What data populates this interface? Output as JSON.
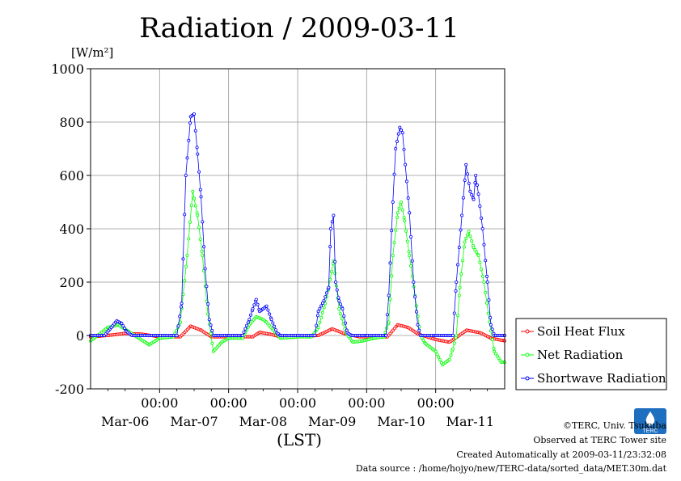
{
  "chart_data": {
    "type": "line",
    "title": "Radiation / 2009-03-11",
    "ylabel": "[W/m²]",
    "xlabel": "(LST)",
    "ylim": [
      -200,
      1000
    ],
    "yticks": [
      -200,
      0,
      200,
      400,
      600,
      800,
      1000
    ],
    "x_range_days": [
      0,
      6
    ],
    "x_midnight_label": "00:00",
    "x_date_labels": [
      "Mar-06",
      "Mar-07",
      "Mar-08",
      "Mar-09",
      "Mar-10",
      "Mar-11"
    ],
    "grid": true,
    "legend_position": "bottom-right outside plot",
    "series": [
      {
        "name": "Soil Heat Flux",
        "color": "#ff0000",
        "points": [
          [
            0.0,
            -5
          ],
          [
            0.25,
            0
          ],
          [
            0.5,
            8
          ],
          [
            0.75,
            5
          ],
          [
            1.0,
            -5
          ],
          [
            1.3,
            -5
          ],
          [
            1.45,
            35
          ],
          [
            1.6,
            20
          ],
          [
            1.75,
            -5
          ],
          [
            2.0,
            -5
          ],
          [
            2.35,
            -5
          ],
          [
            2.45,
            12
          ],
          [
            2.6,
            5
          ],
          [
            2.75,
            -5
          ],
          [
            3.0,
            -5
          ],
          [
            3.3,
            0
          ],
          [
            3.5,
            25
          ],
          [
            3.7,
            5
          ],
          [
            3.9,
            -5
          ],
          [
            4.3,
            -5
          ],
          [
            4.45,
            40
          ],
          [
            4.6,
            30
          ],
          [
            4.75,
            5
          ],
          [
            5.0,
            -15
          ],
          [
            5.2,
            -25
          ],
          [
            5.45,
            20
          ],
          [
            5.65,
            10
          ],
          [
            5.8,
            -10
          ],
          [
            6.0,
            -20
          ]
        ]
      },
      {
        "name": "Net Radiation",
        "color": "#00ff00",
        "points": [
          [
            0.0,
            -20
          ],
          [
            0.1,
            0
          ],
          [
            0.25,
            30
          ],
          [
            0.4,
            40
          ],
          [
            0.55,
            15
          ],
          [
            0.7,
            -10
          ],
          [
            0.85,
            -35
          ],
          [
            1.0,
            -10
          ],
          [
            1.2,
            -5
          ],
          [
            1.3,
            50
          ],
          [
            1.4,
            300
          ],
          [
            1.48,
            540
          ],
          [
            1.55,
            450
          ],
          [
            1.62,
            300
          ],
          [
            1.7,
            80
          ],
          [
            1.78,
            -60
          ],
          [
            1.9,
            -25
          ],
          [
            2.0,
            -10
          ],
          [
            2.2,
            -10
          ],
          [
            2.3,
            40
          ],
          [
            2.4,
            70
          ],
          [
            2.5,
            60
          ],
          [
            2.55,
            50
          ],
          [
            2.65,
            20
          ],
          [
            2.75,
            -10
          ],
          [
            3.0,
            -5
          ],
          [
            3.2,
            -5
          ],
          [
            3.3,
            30
          ],
          [
            3.4,
            120
          ],
          [
            3.45,
            180
          ],
          [
            3.52,
            280
          ],
          [
            3.6,
            100
          ],
          [
            3.7,
            10
          ],
          [
            3.8,
            -25
          ],
          [
            3.95,
            -20
          ],
          [
            4.1,
            -10
          ],
          [
            4.25,
            -5
          ],
          [
            4.32,
            50
          ],
          [
            4.38,
            300
          ],
          [
            4.45,
            460
          ],
          [
            4.5,
            500
          ],
          [
            4.55,
            430
          ],
          [
            4.62,
            300
          ],
          [
            4.7,
            150
          ],
          [
            4.78,
            0
          ],
          [
            4.85,
            -30
          ],
          [
            5.0,
            -60
          ],
          [
            5.1,
            -110
          ],
          [
            5.2,
            -90
          ],
          [
            5.25,
            -50
          ],
          [
            5.3,
            0
          ],
          [
            5.35,
            180
          ],
          [
            5.42,
            350
          ],
          [
            5.48,
            390
          ],
          [
            5.55,
            330
          ],
          [
            5.62,
            300
          ],
          [
            5.7,
            200
          ],
          [
            5.78,
            50
          ],
          [
            5.85,
            -60
          ],
          [
            5.95,
            -100
          ],
          [
            6.0,
            -100
          ]
        ]
      },
      {
        "name": "Shortwave Radiation",
        "color": "#0000ff",
        "points": [
          [
            0.0,
            0
          ],
          [
            0.2,
            0
          ],
          [
            0.3,
            30
          ],
          [
            0.38,
            55
          ],
          [
            0.45,
            45
          ],
          [
            0.52,
            15
          ],
          [
            0.6,
            0
          ],
          [
            1.0,
            0
          ],
          [
            1.25,
            0
          ],
          [
            1.32,
            120
          ],
          [
            1.38,
            600
          ],
          [
            1.45,
            820
          ],
          [
            1.5,
            830
          ],
          [
            1.55,
            680
          ],
          [
            1.6,
            520
          ],
          [
            1.66,
            250
          ],
          [
            1.72,
            60
          ],
          [
            1.78,
            0
          ],
          [
            2.0,
            0
          ],
          [
            2.2,
            0
          ],
          [
            2.3,
            60
          ],
          [
            2.35,
            100
          ],
          [
            2.4,
            135
          ],
          [
            2.45,
            90
          ],
          [
            2.5,
            100
          ],
          [
            2.55,
            110
          ],
          [
            2.62,
            60
          ],
          [
            2.7,
            10
          ],
          [
            2.75,
            0
          ],
          [
            3.0,
            0
          ],
          [
            3.25,
            0
          ],
          [
            3.3,
            90
          ],
          [
            3.38,
            130
          ],
          [
            3.45,
            180
          ],
          [
            3.48,
            400
          ],
          [
            3.52,
            450
          ],
          [
            3.55,
            200
          ],
          [
            3.6,
            130
          ],
          [
            3.65,
            100
          ],
          [
            3.72,
            10
          ],
          [
            3.78,
            0
          ],
          [
            4.0,
            0
          ],
          [
            4.28,
            0
          ],
          [
            4.32,
            150
          ],
          [
            4.38,
            500
          ],
          [
            4.42,
            700
          ],
          [
            4.48,
            780
          ],
          [
            4.52,
            760
          ],
          [
            4.56,
            640
          ],
          [
            4.62,
            460
          ],
          [
            4.68,
            200
          ],
          [
            4.74,
            40
          ],
          [
            4.78,
            0
          ],
          [
            5.0,
            0
          ],
          [
            5.25,
            0
          ],
          [
            5.3,
            200
          ],
          [
            5.38,
            450
          ],
          [
            5.44,
            640
          ],
          [
            5.5,
            540
          ],
          [
            5.55,
            510
          ],
          [
            5.58,
            600
          ],
          [
            5.62,
            530
          ],
          [
            5.68,
            400
          ],
          [
            5.75,
            200
          ],
          [
            5.8,
            40
          ],
          [
            5.85,
            0
          ],
          [
            6.0,
            0
          ]
        ]
      }
    ]
  },
  "credits": {
    "copyright": "©TERC, Univ. Tsukuba",
    "observed": "Observed at TERC Tower site",
    "created": "Created Automatically at 2009-03-11/23:32:08",
    "source": "Data source : /home/hojyo/new/TERC-data/sorted_data/MET.30m.dat",
    "logo_text": "TERC"
  }
}
